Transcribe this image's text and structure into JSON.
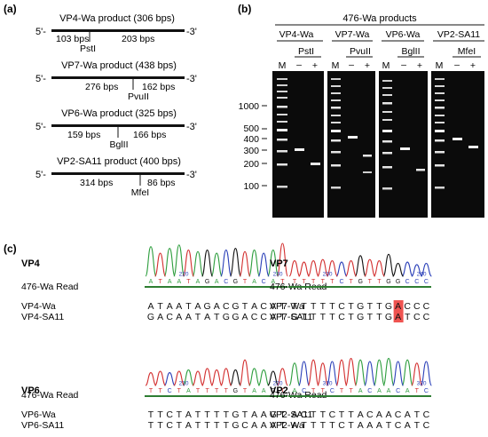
{
  "panel_a": {
    "label": "(a)",
    "constructs": [
      {
        "end5": "5'-",
        "end3": "-3'",
        "title": "VP4-Wa product (306 bps)",
        "left_len": "103 bps",
        "right_len": "203 bps",
        "enzyme": "PstI"
      },
      {
        "end5": "5'-",
        "end3": "-3'",
        "title": "VP7-Wa product (438 bps)",
        "left_len": "276 bps",
        "right_len": "162 bps",
        "enzyme": "PvuII"
      },
      {
        "end5": "5'-",
        "end3": "-3'",
        "title": "VP6-Wa product (325 bps)",
        "left_len": "159 bps",
        "right_len": "166 bps",
        "enzyme": "BglII"
      },
      {
        "end5": "5'-",
        "end3": "-3'",
        "title": "VP2-SA11 product (400 bps)",
        "left_len": "314 bps",
        "right_len": "86 bps",
        "enzyme": "MfeI"
      }
    ]
  },
  "panel_b": {
    "label": "(b)",
    "title": "476-Wa products",
    "size_markers": [
      "1000",
      "500",
      "400",
      "300",
      "200",
      "100"
    ],
    "gels": [
      {
        "name": "VP4-Wa",
        "enzyme": "PstI",
        "lanes": [
          "M",
          "–",
          "+"
        ]
      },
      {
        "name": "VP7-Wa",
        "enzyme": "PvuII",
        "lanes": [
          "M",
          "–",
          "+"
        ]
      },
      {
        "name": "VP6-Wa",
        "enzyme": "BglII",
        "lanes": [
          "M",
          "–",
          "+"
        ]
      },
      {
        "name": "VP2-SA11",
        "enzyme": "MfeI",
        "lanes": [
          "M",
          "–",
          "+"
        ]
      }
    ]
  },
  "panel_c": {
    "label": "(c)",
    "blocks": [
      {
        "name": "VP4",
        "read_label": "476-Wa Read",
        "read_seq": "ATAATAGACGTACAT",
        "tick_labels": [
          "220",
          "230"
        ],
        "seq1_label": "VP4-Wa",
        "seq1": "ATAATAGACGTACAT",
        "seq2_label": "VP4-SA11",
        "seq2": "GACAATATGGACCAT"
      },
      {
        "name": "VP7",
        "read_label": "476-Wa Read",
        "read_seq": "TTTTTCTGTTGGCCC",
        "tick_labels": [
          "230",
          "240"
        ],
        "seq1_label": "VP7-Wa",
        "seq1": "TTTTTCTGTTGACCC",
        "seq2_label": "VP7-SA11",
        "seq2": "GTTTTCTGTTGATCC",
        "highlight_color": "#ef5350"
      },
      {
        "name": "VP6",
        "read_label": "476-Wa Read",
        "read_seq": "TTCTATTTTGTAAGT",
        "tick_labels": [
          "210",
          "220"
        ],
        "seq1_label": "VP6-Wa",
        "seq1": "TTCTATTTTGTAAGT",
        "seq2_label": "VP6-SA11",
        "seq2": "TTCTATTTTGCAAAT"
      },
      {
        "name": "VP2",
        "read_label": "476-Wa Read",
        "read_seq": "ACTTCTTACAACATC",
        "tick_labels": [
          "310",
          "320"
        ],
        "seq1_label": "VP2-SA11",
        "seq1": "ACTTCTTACAACATC",
        "seq2_label": "VP2-Wa",
        "seq2": "ATTTTCTAAATCATC"
      }
    ]
  },
  "colors": {
    "base_A": "#2e9e3e",
    "base_C": "#2a3fb8",
    "base_G": "#111111",
    "base_T": "#d32f2f",
    "read_underline": "#2e7d32",
    "gel_bg": "#0b0b0b",
    "band": "#f2f2f2"
  }
}
